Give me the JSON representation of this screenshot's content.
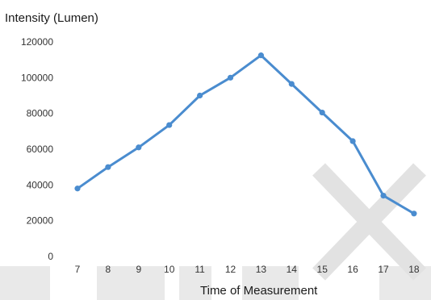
{
  "chart_data": {
    "type": "line",
    "ylabel": "Intensity (Lumen)",
    "xlabel": "Time of Measurement",
    "categories": [
      "7",
      "8",
      "9",
      "10",
      "11",
      "12",
      "13",
      "14",
      "15",
      "16",
      "17",
      "18"
    ],
    "series": [
      {
        "values": [
          38000,
          50000,
          61000,
          73500,
          90000,
          100000,
          112500,
          96500,
          80500,
          64500,
          34000,
          24000
        ],
        "color": "#4a8ccf"
      }
    ],
    "ylim": [
      0,
      120000
    ],
    "yticks": [
      "0",
      "20000",
      "40000",
      "60000",
      "80000",
      "100000",
      "120000"
    ],
    "grid": false,
    "legend": "none"
  }
}
